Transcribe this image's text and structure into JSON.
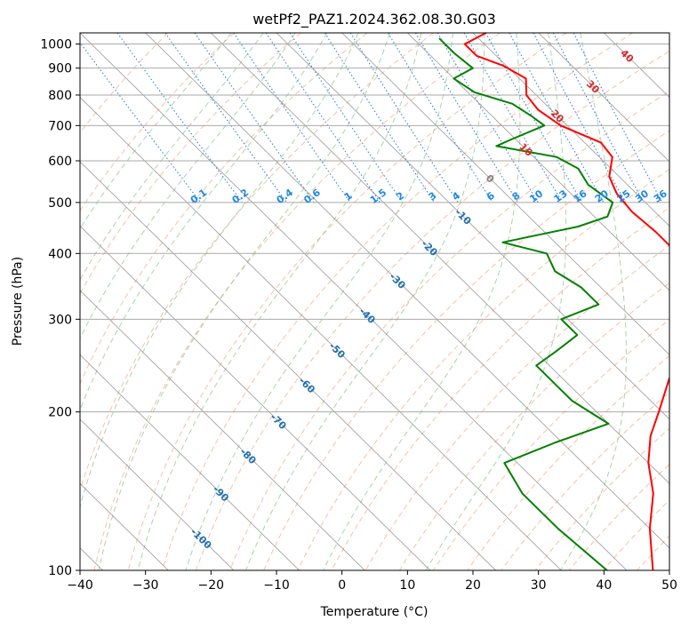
{
  "chart_data": {
    "type": "line",
    "title": "wetPf2_PAZ1.2024.362.08.30.G03",
    "xlabel": "Temperature (°C)",
    "ylabel": "Pressure (hPa)",
    "xlim": [
      -40,
      50
    ],
    "ylim": [
      1050,
      100
    ],
    "y_scale": "log",
    "skew": "skew-T",
    "x_ticks": [
      "−40",
      "−30",
      "−20",
      "−10",
      "0",
      "10",
      "20",
      "30",
      "40",
      "50"
    ],
    "x_tick_values": [
      -40,
      -30,
      -20,
      -10,
      0,
      10,
      20,
      30,
      40,
      50
    ],
    "y_ticks": [
      "100",
      "200",
      "300",
      "400",
      "500",
      "600",
      "700",
      "800",
      "900",
      "1000"
    ],
    "y_tick_values": [
      100,
      200,
      300,
      400,
      500,
      600,
      700,
      800,
      900,
      1000
    ],
    "grid": true,
    "series": [
      {
        "color": "#ff0000",
        "points": [
          [
            1050,
            22.0
          ],
          [
            1000,
            17.0
          ],
          [
            950,
            17.0
          ],
          [
            910,
            19.5
          ],
          [
            860,
            21.0
          ],
          [
            800,
            18.5
          ],
          [
            750,
            18.0
          ],
          [
            700,
            19.0
          ],
          [
            650,
            22.5
          ],
          [
            610,
            22.0
          ],
          [
            560,
            18.5
          ],
          [
            520,
            17.0
          ],
          [
            480,
            16.5
          ],
          [
            440,
            17.0
          ],
          [
            410,
            17.0
          ],
          [
            380,
            14.0
          ],
          [
            340,
            10.5
          ],
          [
            310,
            8.0
          ],
          [
            280,
            4.5
          ],
          [
            250,
            0.0
          ],
          [
            230,
            -4.0
          ],
          [
            200,
            -10.5
          ],
          [
            180,
            -15.5
          ],
          [
            160,
            -20.0
          ],
          [
            140,
            -24.0
          ],
          [
            120,
            -30.0
          ],
          [
            100,
            -36.0
          ]
        ]
      },
      {
        "color": "#008000",
        "points": [
          [
            1025,
            14.0
          ],
          [
            960,
            14.0
          ],
          [
            900,
            14.5
          ],
          [
            860,
            10.0
          ],
          [
            810,
            11.0
          ],
          [
            770,
            15.0
          ],
          [
            730,
            16.0
          ],
          [
            700,
            16.5
          ],
          [
            660,
            9.5
          ],
          [
            640,
            6.0
          ],
          [
            610,
            13.5
          ],
          [
            580,
            15.0
          ],
          [
            540,
            14.0
          ],
          [
            500,
            15.0
          ],
          [
            470,
            12.0
          ],
          [
            450,
            6.0
          ],
          [
            420,
            -8.0
          ],
          [
            400,
            -3.0
          ],
          [
            370,
            -4.5
          ],
          [
            345,
            -3.0
          ],
          [
            320,
            -3.0
          ],
          [
            300,
            -11.0
          ],
          [
            280,
            -11.0
          ],
          [
            260,
            -17.0
          ],
          [
            245,
            -22.0
          ],
          [
            230,
            -22.0
          ],
          [
            210,
            -22.0
          ],
          [
            190,
            -20.0
          ],
          [
            175,
            -31.0
          ],
          [
            160,
            -42.0
          ],
          [
            140,
            -44.0
          ],
          [
            120,
            -44.0
          ],
          [
            100,
            -43.0
          ]
        ]
      }
    ],
    "dry_adiabats_theta_c": [
      -30,
      -20,
      -10,
      0,
      10,
      20,
      30,
      40,
      50,
      60,
      70,
      80,
      90,
      100,
      110,
      120,
      130,
      140,
      150,
      160,
      170,
      180,
      190,
      200,
      210,
      220,
      230,
      240,
      250,
      260
    ],
    "moist_adiabats_t1000_c": [
      -20,
      -15,
      -10,
      -5,
      0,
      5,
      10,
      15,
      20,
      25,
      30,
      35
    ],
    "isotherms_c": [
      -150,
      -140,
      -130,
      -120,
      -110,
      -100,
      -90,
      -80,
      -70,
      -60,
      -50,
      -40,
      -30,
      -20,
      -10,
      0,
      10,
      20,
      30,
      40,
      50
    ],
    "isotherm_labels": [
      {
        "text": "-100",
        "t": -100
      },
      {
        "text": "-90",
        "t": -90
      },
      {
        "text": "-80",
        "t": -80
      },
      {
        "text": "-70",
        "t": -70
      },
      {
        "text": "-60",
        "t": -60
      },
      {
        "text": "-50",
        "t": -50
      },
      {
        "text": "-40",
        "t": -40
      },
      {
        "text": "-30",
        "t": -30
      },
      {
        "text": "-20",
        "t": -20
      },
      {
        "text": "-10",
        "t": -10
      },
      {
        "text": "0",
        "t": 0,
        "color": "#808080"
      },
      {
        "text": "10",
        "t": 10,
        "color": "#d62728"
      },
      {
        "text": "20",
        "t": 20,
        "color": "#d62728"
      },
      {
        "text": "30",
        "t": 30,
        "color": "#d62728"
      },
      {
        "text": "40",
        "t": 40,
        "color": "#d62728"
      }
    ],
    "mixing_ratio_labels": [
      "0.1",
      "0.2",
      "0.4",
      "0.6",
      "1",
      "1.5",
      "2",
      "3",
      "4",
      "6",
      "8",
      "10",
      "13",
      "16",
      "20",
      "25",
      "30",
      "36"
    ],
    "mixing_ratios_gkg": [
      0.1,
      0.2,
      0.4,
      0.6,
      1,
      1.5,
      2,
      3,
      4,
      6,
      8,
      10,
      13,
      16,
      20,
      25,
      30,
      36
    ],
    "mixing_ratio_label_pressure_hpa": 500,
    "colors": {
      "dry_adiabat": "#f4a582",
      "moist_adiabat": "#8fc48f",
      "mixing_ratio": "#1f78d1",
      "isotherm": "#808080",
      "isobar": "#a9a9a9",
      "isotherm_label_cold": "#1f6fb0",
      "mixing_label": "#1e88e5"
    }
  }
}
